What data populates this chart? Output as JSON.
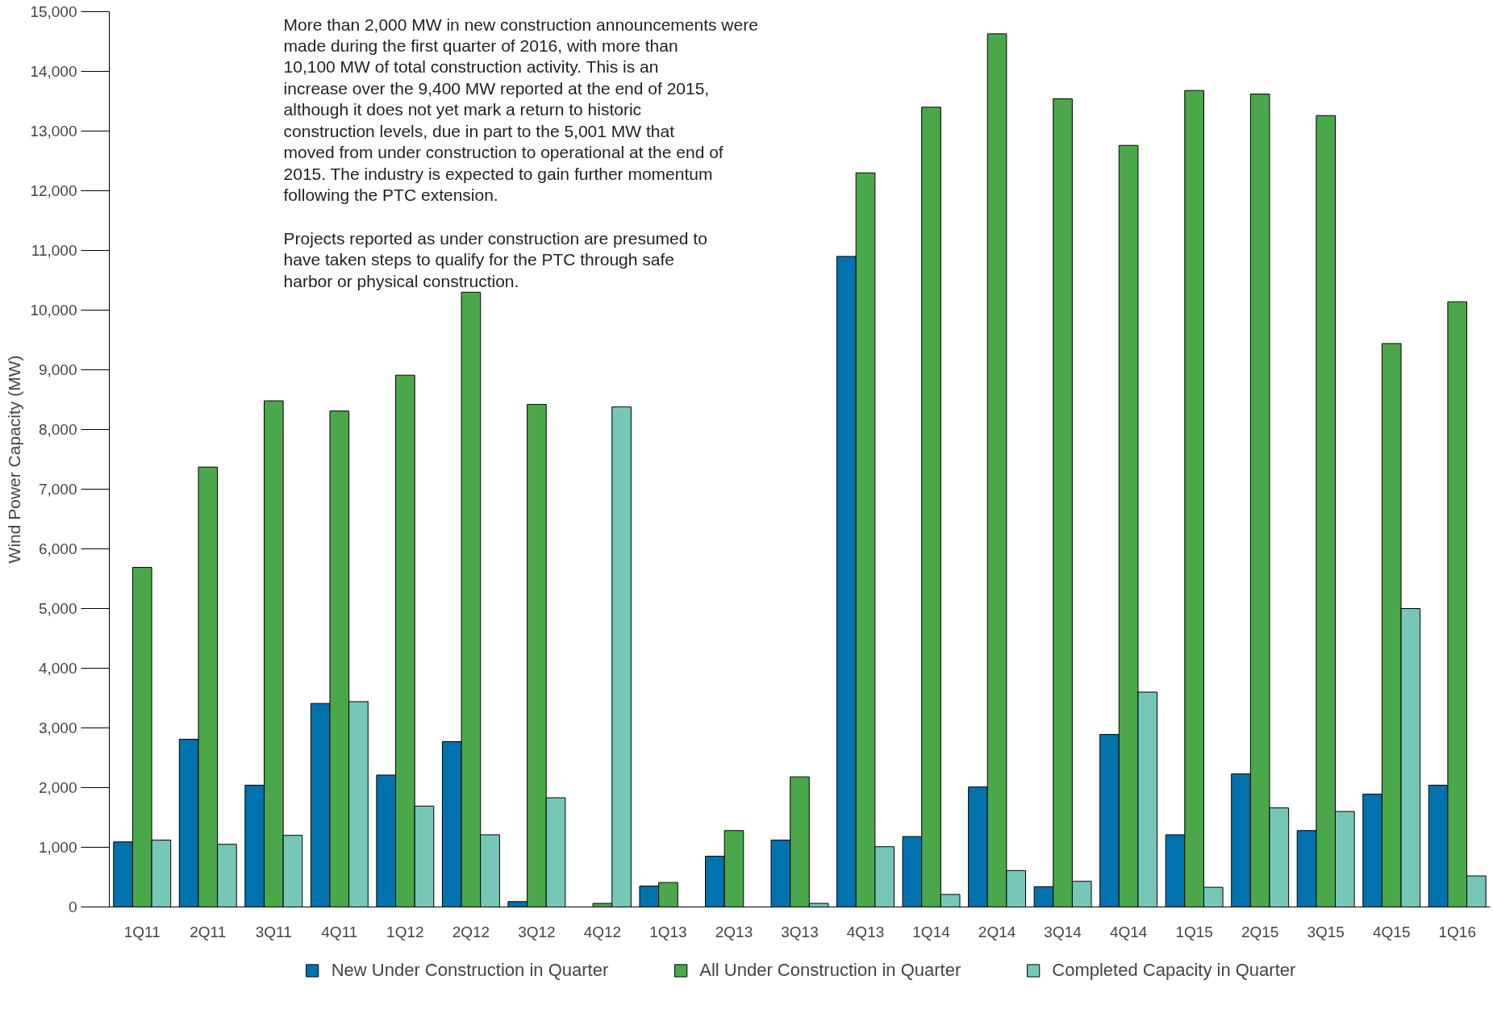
{
  "chart_data": {
    "type": "bar",
    "ylabel": "Wind Power Capacity (MW)",
    "categories": [
      "1Q11",
      "2Q11",
      "3Q11",
      "4Q11",
      "1Q12",
      "2Q12",
      "3Q12",
      "4Q12",
      "1Q13",
      "2Q13",
      "3Q13",
      "4Q13",
      "1Q14",
      "2Q14",
      "3Q14",
      "4Q14",
      "1Q15",
      "2Q15",
      "3Q15",
      "4Q15",
      "1Q16"
    ],
    "series": [
      {
        "name": "New Under Construction in Quarter",
        "color": "#0072ae",
        "values": [
          1090,
          2810,
          2040,
          3410,
          2210,
          2770,
          90,
          0,
          350,
          850,
          1120,
          10900,
          1180,
          2010,
          340,
          2890,
          1210,
          2230,
          1280,
          1890,
          2040
        ]
      },
      {
        "name": "All Under Construction in Quarter",
        "color": "#4aa84a",
        "values": [
          5690,
          7370,
          8480,
          8310,
          8910,
          10300,
          8420,
          60,
          410,
          1280,
          2180,
          12300,
          13400,
          14630,
          13540,
          12760,
          13680,
          13620,
          13260,
          9440,
          10140
        ]
      },
      {
        "name": "Completed Capacity in Quarter",
        "color": "#76c7b8",
        "values": [
          1120,
          1050,
          1200,
          3440,
          1690,
          1210,
          1830,
          8380,
          0,
          0,
          60,
          1010,
          210,
          610,
          430,
          3600,
          330,
          1660,
          1600,
          5000,
          520
        ]
      }
    ],
    "ylim": [
      0,
      15000
    ],
    "yticks": [
      0,
      {
        "value": 1000,
        "label": "1,000"
      },
      {
        "value": 2000,
        "label": "2,000"
      },
      {
        "value": 3000,
        "label": "3,000"
      },
      {
        "value": 4000,
        "label": "4,000"
      },
      {
        "value": 5000,
        "label": "5,000"
      },
      {
        "value": 6000,
        "label": "6,000"
      },
      {
        "value": 7000,
        "label": "7,000"
      },
      {
        "value": 8000,
        "label": "8,000"
      },
      {
        "value": 9000,
        "label": "9,000"
      },
      {
        "value": 10000,
        "label": "10,000"
      },
      {
        "value": 11000,
        "label": "11,000"
      },
      {
        "value": 12000,
        "label": "12,000"
      },
      {
        "value": 13000,
        "label": "13,000"
      },
      {
        "value": 14000,
        "label": "14,000"
      },
      {
        "value": 15000,
        "label": "15,000"
      }
    ],
    "annotations": [
      "More than 2,000 MW in new construction announcements were made during the first quarter of 2016, with more than 10,100 MW of total construction activity. This is an increase over the 9,400 MW reported at the end of 2015, although it does not yet mark a return to historic construction levels, due in part to the 5,001 MW that moved from under construction to operational at the end of 2015. The industry is expected to gain further momentum following the PTC extension.",
      "Projects reported as under construction are presumed to have taken steps to qualify for the PTC through safe harbor or physical construction."
    ],
    "grid": false,
    "legend": "bottom"
  }
}
